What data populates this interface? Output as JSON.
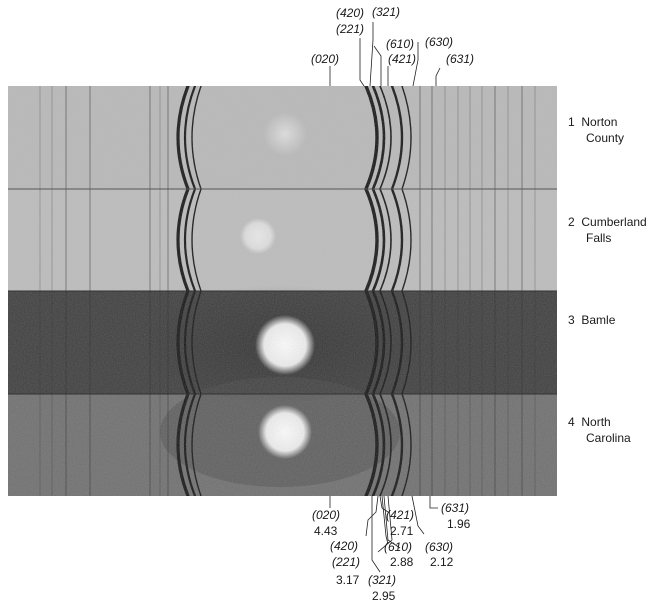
{
  "top_labels": {
    "l420": "(420)",
    "l221": "(221)",
    "l321": "(321)",
    "l610": "(610)",
    "l630": "(630)",
    "l020": "(020)",
    "l421": "(421)",
    "l631": "(631)"
  },
  "bottom_labels": {
    "l020": "(020)",
    "d020": "4.43",
    "l421": "(421)",
    "d421": "2.71",
    "l631": "(631)",
    "d631": "1.96",
    "l420": "(420)",
    "l610": "(610)",
    "l630": "(630)",
    "d610": "2.88",
    "d630": "2.12",
    "l221": "(221)",
    "d221": "3.17",
    "l321": "(321)",
    "d321": "2.95"
  },
  "samples": [
    {
      "number": "1",
      "line1": "Norton",
      "line2": "County"
    },
    {
      "number": "2",
      "line1": "Cumberland",
      "line2": "Falls"
    },
    {
      "number": "3",
      "line1": "Bamle",
      "line2": ""
    },
    {
      "number": "4",
      "line1": "North",
      "line2": "Carolina"
    }
  ],
  "colors": {
    "strip1": "#b9b9b9",
    "strip2": "#bdbdbd",
    "strip3": "#3c3c3c",
    "strip4": "#6e6e6e",
    "arc": "#141414",
    "spot": "#f2f2f2"
  }
}
